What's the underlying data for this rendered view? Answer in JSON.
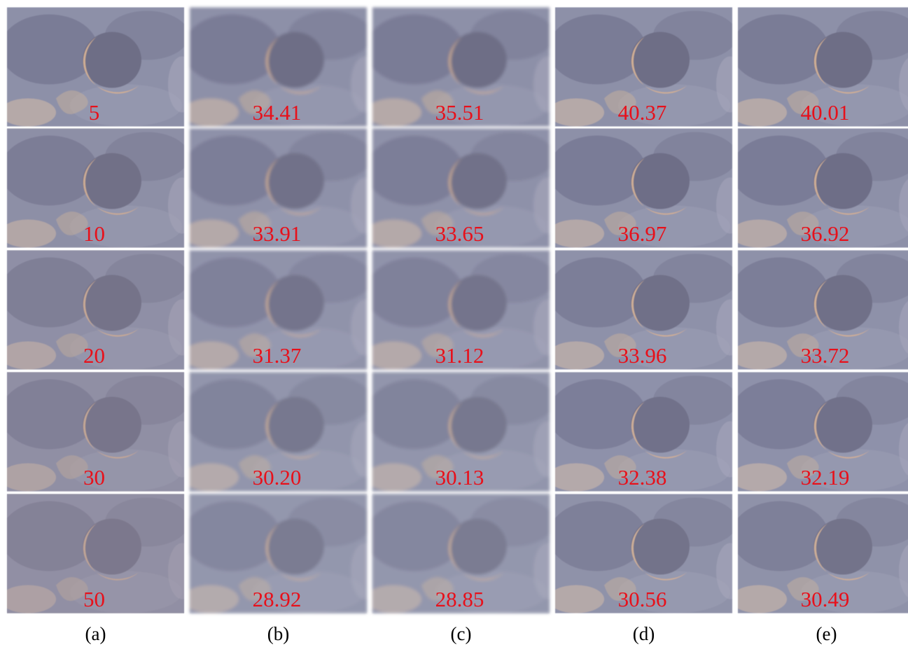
{
  "grid": {
    "rows": [
      [
        "5",
        "34.41",
        "35.51",
        "40.37",
        "40.01"
      ],
      [
        "10",
        "33.91",
        "33.65",
        "36.97",
        "36.92"
      ],
      [
        "20",
        "31.37",
        "31.12",
        "33.96",
        "33.72"
      ],
      [
        "30",
        "30.20",
        "30.13",
        "32.38",
        "32.19"
      ],
      [
        "50",
        "28.92",
        "28.85",
        "30.56",
        "30.49"
      ]
    ]
  },
  "captions": [
    "(a)",
    "(b)",
    "(c)",
    "(d)",
    "(e)"
  ]
}
